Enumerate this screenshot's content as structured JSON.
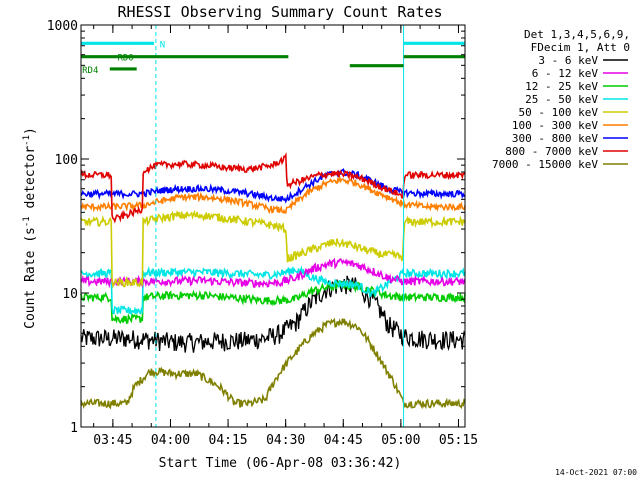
{
  "chart_data": {
    "type": "line",
    "title": "RHESSI Observing Summary Count Rates",
    "xlabel": "Start Time (06-Apr-08 03:36:42)",
    "ylabel": "Count Rate (s",
    "ylabel_sup": "-1",
    "ylabel_mid": " detector",
    "ylabel_end": ")",
    "yscale": "log",
    "ylim": [
      1,
      1000
    ],
    "xlim_minutes": [
      0,
      100
    ],
    "y_ticks": [
      {
        "value": 1,
        "label": "1"
      },
      {
        "value": 10,
        "label": "10"
      },
      {
        "value": 100,
        "label": "100"
      },
      {
        "value": 1000,
        "label": "1000"
      }
    ],
    "x_ticks": [
      {
        "minute": 8.3,
        "label": "03:45"
      },
      {
        "minute": 23.3,
        "label": "04:00"
      },
      {
        "minute": 38.3,
        "label": "04:15"
      },
      {
        "minute": 53.3,
        "label": "04:30"
      },
      {
        "minute": 68.3,
        "label": "04:45"
      },
      {
        "minute": 83.3,
        "label": "05:00"
      },
      {
        "minute": 98.3,
        "label": "05:15"
      }
    ],
    "legend": {
      "header": [
        "Det 1,3,4,5,6,9,",
        "FDecim 1, Att 0"
      ],
      "entries": [
        {
          "label": "3 - 6 keV",
          "color": "#000000"
        },
        {
          "label": "6 - 12 keV",
          "color": "#e600e6"
        },
        {
          "label": "12 - 25 keV",
          "color": "#00cc00"
        },
        {
          "label": "25 - 50 keV",
          "color": "#00e5e5"
        },
        {
          "label": "50 - 100 keV",
          "color": "#cccc00"
        },
        {
          "label": "100 - 300 keV",
          "color": "#ff7f00"
        },
        {
          "label": "300 - 800 keV",
          "color": "#0000ff"
        },
        {
          "label": "800 - 7000 keV",
          "color": "#e00000"
        },
        {
          "label": "7000 - 15000 keV",
          "color": "#808000"
        }
      ]
    },
    "series": [
      {
        "name": "3 - 6 keV",
        "color": "#000000",
        "noise": 0.12,
        "x": [
          0,
          12,
          18,
          24,
          30,
          36,
          42,
          48,
          52,
          56,
          60,
          64,
          68,
          72,
          76,
          80,
          84,
          88,
          94,
          100
        ],
        "y": [
          4.6,
          4.6,
          4.5,
          4.3,
          4.3,
          4.4,
          4.4,
          4.6,
          5.0,
          6.0,
          8.5,
          10.8,
          11.7,
          11.2,
          8.8,
          5.8,
          4.8,
          4.6,
          4.5,
          4.5
        ]
      },
      {
        "name": "7000 - 15000 keV",
        "color": "#808000",
        "noise": 0.05,
        "x": [
          0,
          6,
          12,
          14,
          18,
          20,
          24,
          30,
          36,
          40,
          44,
          48,
          52,
          56,
          60,
          64,
          68,
          72,
          76,
          79,
          82,
          84,
          88,
          94,
          100
        ],
        "y": [
          1.5,
          1.5,
          1.5,
          2.0,
          2.6,
          2.6,
          2.5,
          2.5,
          2.0,
          1.5,
          1.5,
          1.6,
          2.6,
          3.6,
          4.8,
          5.8,
          6.2,
          5.6,
          3.9,
          2.8,
          2.0,
          1.5,
          1.5,
          1.5,
          1.5
        ]
      },
      {
        "name": "12 - 25 keV",
        "color": "#00cc00",
        "noise": 0.05,
        "x": [
          0,
          8,
          8.1,
          16,
          16.1,
          24,
          32,
          40,
          48,
          52,
          56,
          60,
          64,
          68,
          72,
          76,
          80,
          84,
          90,
          100
        ],
        "y": [
          9.3,
          9.3,
          6.4,
          6.4,
          9.3,
          9.6,
          9.6,
          9.2,
          8.8,
          8.8,
          9.0,
          10.3,
          11.0,
          11.6,
          11.2,
          10.4,
          9.6,
          9.3,
          9.3,
          9.3
        ]
      },
      {
        "name": "25 - 50 keV",
        "color": "#00e5e5",
        "noise": 0.05,
        "x": [
          0,
          8,
          8.1,
          16,
          16.1,
          24,
          32,
          40,
          48,
          52,
          56,
          60,
          64,
          68,
          72,
          76,
          80,
          84,
          90,
          100
        ],
        "y": [
          14.0,
          14.0,
          7.4,
          7.4,
          14.2,
          14.3,
          14.3,
          14.0,
          13.6,
          14.0,
          15.0,
          13.2,
          12.0,
          11.8,
          11.5,
          9.8,
          11.8,
          14.0,
          14.0,
          14.0
        ]
      },
      {
        "name": "6 - 12 keV",
        "color": "#e600e6",
        "noise": 0.05,
        "x": [
          0,
          8,
          16,
          24,
          32,
          40,
          48,
          52,
          56,
          60,
          64,
          68,
          72,
          76,
          80,
          84,
          90,
          100
        ],
        "y": [
          12.2,
          12.2,
          12.2,
          12.3,
          12.4,
          12.0,
          11.8,
          12.0,
          13.0,
          15.0,
          16.4,
          17.0,
          16.2,
          14.6,
          13.0,
          12.2,
          12.2,
          12.2
        ]
      },
      {
        "name": "50 - 100 keV",
        "color": "#cccc00",
        "noise": 0.05,
        "x": [
          0,
          8,
          8.1,
          16,
          16.1,
          20,
          26,
          32,
          38,
          44,
          50,
          53.5,
          53.6,
          58,
          62,
          66,
          70,
          74,
          78,
          82,
          84,
          84.1,
          90,
          100
        ],
        "y": [
          34,
          34,
          12,
          12,
          34,
          36,
          38,
          38,
          36,
          34,
          32,
          30,
          18,
          20,
          22,
          24,
          23,
          21,
          19.5,
          19,
          18.5,
          34,
          34,
          34
        ]
      },
      {
        "name": "100 - 300 keV",
        "color": "#ff7f00",
        "noise": 0.04,
        "x": [
          0,
          8,
          16,
          20,
          26,
          32,
          38,
          44,
          50,
          53.5,
          56,
          60,
          64,
          68,
          72,
          76,
          80,
          84,
          90,
          100
        ],
        "y": [
          44,
          44,
          45,
          48,
          52,
          52,
          50,
          46,
          42,
          41,
          48,
          58,
          66,
          70,
          66,
          58,
          52,
          46,
          44,
          44
        ]
      },
      {
        "name": "300 - 800 keV",
        "color": "#0000ff",
        "noise": 0.04,
        "x": [
          0,
          8,
          16,
          20,
          26,
          32,
          38,
          44,
          50,
          53.5,
          56,
          60,
          64,
          68,
          72,
          76,
          80,
          84,
          90,
          100
        ],
        "y": [
          55,
          55,
          55,
          58,
          60,
          60,
          58,
          55,
          51,
          50,
          56,
          66,
          76,
          80,
          76,
          68,
          60,
          56,
          55,
          55
        ]
      },
      {
        "name": "800 - 7000 keV",
        "color": "#e00000",
        "noise": 0.04,
        "x": [
          0,
          8,
          8.1,
          16,
          16.1,
          20,
          26,
          32,
          38,
          44,
          50,
          53.5,
          53.6,
          58,
          62,
          66,
          70,
          74,
          78,
          82,
          84,
          84.1,
          90,
          100
        ],
        "y": [
          76,
          76,
          35,
          42,
          82,
          90,
          92,
          90,
          86,
          84,
          90,
          102,
          64,
          70,
          76,
          78,
          76,
          70,
          62,
          56,
          52,
          76,
          76,
          76
        ]
      }
    ],
    "mode_bars": [
      {
        "label": "RD0",
        "color": "#008000",
        "level": 580,
        "label_at": 9.5,
        "segments": [
          [
            0,
            54
          ],
          [
            70,
            84
          ],
          [
            84,
            100
          ]
        ],
        "offsets": [
          0,
          -1,
          0
        ]
      },
      {
        "label": "RD4",
        "color": "#008000",
        "level": 470,
        "label_at": 0.3,
        "segments": [
          [
            7.5,
            14.5
          ]
        ],
        "offsets": [
          0
        ]
      },
      {
        "label": "N",
        "color": "#00e5e5",
        "level": 730,
        "label_at": 20.5,
        "segments": [
          [
            0,
            19
          ],
          [
            84,
            100
          ]
        ],
        "offsets": [
          0,
          0
        ]
      }
    ],
    "night_lines_minutes": [
      0,
      19.5,
      84,
      100
    ],
    "night_lines_dashed": [
      false,
      true,
      false,
      true
    ]
  },
  "footer": {
    "date": "14-Oct-2021 07:00"
  }
}
